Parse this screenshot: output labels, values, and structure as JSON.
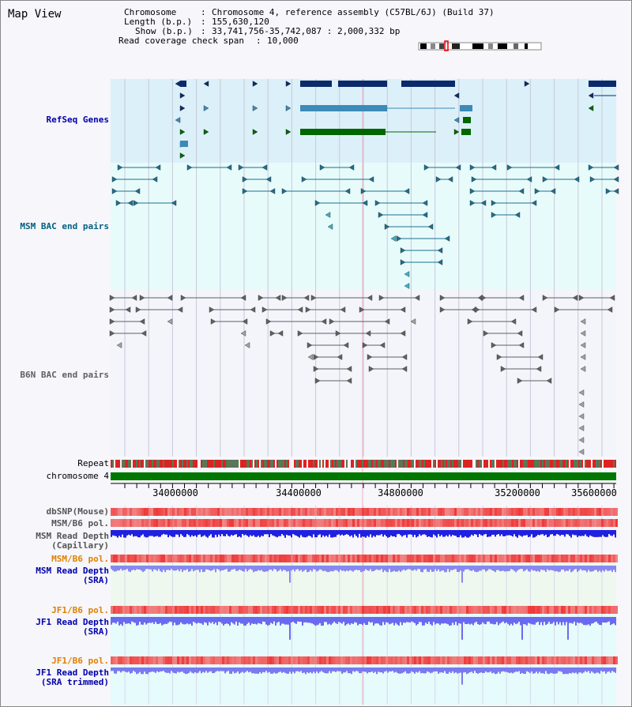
{
  "app": {
    "title": "Map View"
  },
  "header": {
    "chromosome_key": "Chromosome",
    "chromosome_val": "Chromosome 4, reference assembly (C57BL/6J) (Build 37)",
    "length_key": "Length (b.p.)",
    "length_val": "155,630,120",
    "show_key": "Show (b.p.)",
    "show_val": "33,741,756-35,742,087 : 2,000,332 bp",
    "coverage_key": "Read coverage check span",
    "coverage_val": "10,000"
  },
  "tracks": {
    "refseq": "RefSeq Genes",
    "msm_bac": "MSM BAC end pairs",
    "b6n_bac": "B6N BAC end pairs",
    "repeat": "Repeat",
    "chromosome": "chromosome 4",
    "dbsnp": "dbSNP(Mouse)",
    "msm_pol": "MSM/B6 pol.",
    "msm_depth_cap": "MSM Read Depth\n(Capillary)",
    "msm_pol2": "MSM/B6 pol.",
    "msm_depth_sra": "MSM Read Depth\n(SRA)",
    "jf1_pol": "JF1/B6 pol.",
    "jf1_depth_sra": "JF1 Read Depth\n(SRA)",
    "jf1_pol2": "JF1/B6 pol.",
    "jf1_depth_trim": "JF1 Read Depth\n(SRA trimmed)"
  },
  "axis": {
    "ticks": [
      "34000000",
      "34400000",
      "34800000",
      "35200000",
      "35600000"
    ]
  },
  "colors": {
    "refseq_label": "#0000aa",
    "msm_label": "#006080",
    "b6n_label": "#606060",
    "jf1_pol_label": "#e08000",
    "depth_label": "#0000aa",
    "gene_dark": "#0a2a6a",
    "gene_mid": "#3b8ab8",
    "gene_green": "#006600"
  }
}
